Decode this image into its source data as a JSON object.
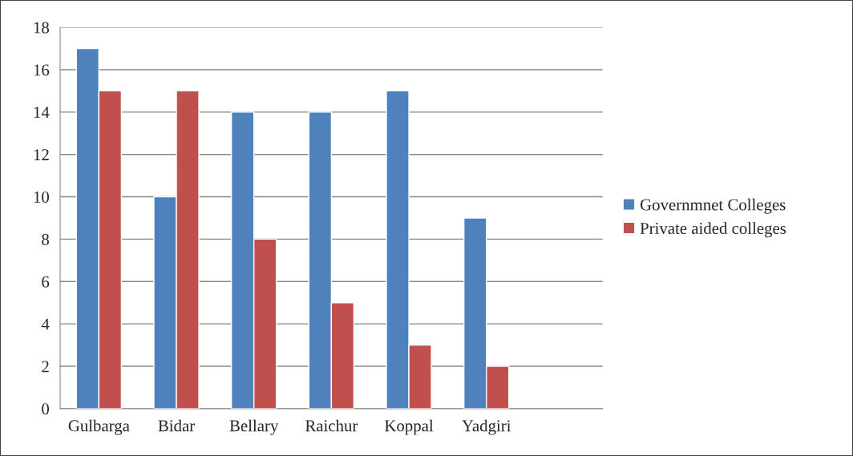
{
  "chart_data": {
    "type": "bar",
    "categories": [
      "Gulbarga",
      "Bidar",
      "Bellary",
      "Raichur",
      "Koppal",
      "Yadgiri",
      null
    ],
    "series": [
      {
        "name": "Governmnet Colleges",
        "color": "#4f81bd",
        "values": [
          17,
          10,
          14,
          14,
          15,
          9,
          null
        ]
      },
      {
        "name": "Private aided colleges",
        "color": "#c0504d",
        "values": [
          15,
          15,
          8,
          5,
          3,
          2,
          null
        ]
      }
    ],
    "ylim": [
      0,
      18
    ],
    "yticks": [
      0,
      2,
      4,
      6,
      8,
      10,
      12,
      14,
      16,
      18
    ],
    "grid": "y",
    "legend": "right"
  }
}
